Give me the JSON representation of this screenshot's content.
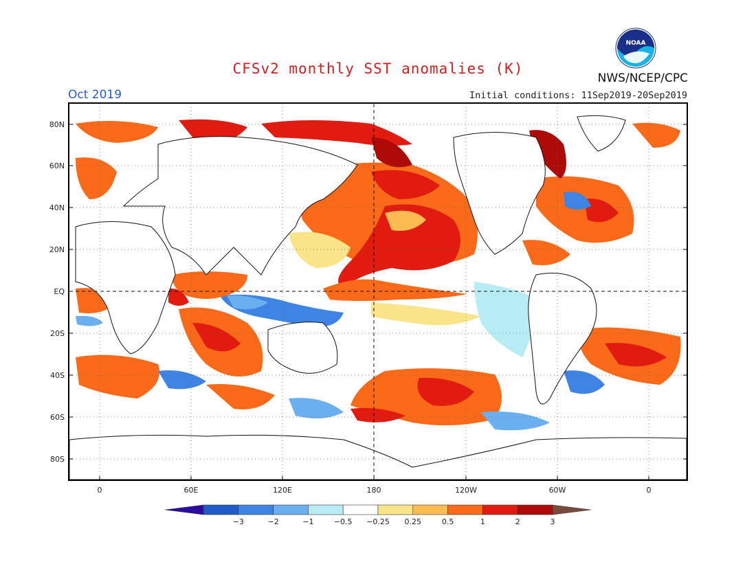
{
  "title": "CFSv2 monthly SST anomalies (K)",
  "month": "Oct 2019",
  "initial_conditions": "Initial conditions: 11Sep2019-20Sep2019",
  "agency": "NWS/NCEP/CPC",
  "logo_text": "NOAA",
  "lat_labels": [
    "80N",
    "60N",
    "40N",
    "20N",
    "EQ",
    "20S",
    "40S",
    "60S",
    "80S"
  ],
  "lon_labels": [
    "0",
    "60E",
    "120E",
    "180",
    "120W",
    "60W",
    "0"
  ],
  "colorbar": {
    "colors": [
      "#2b0c9f",
      "#1f5bc9",
      "#3d84e4",
      "#6ab0f0",
      "#b8ecf4",
      "#ffffff",
      "#fbe58a",
      "#fdbc52",
      "#fa6a18",
      "#e21b10",
      "#ad0a08",
      "#7a4a3a"
    ],
    "labels": [
      "−3",
      "−2",
      "−1",
      "−0.5",
      "−0.25",
      "0.25",
      "0.5",
      "1",
      "2",
      "3"
    ]
  },
  "chart_data": {
    "type": "heatmap",
    "variable": "SST anomalies (K)",
    "levels": [
      -3,
      -2,
      -1,
      -0.5,
      -0.25,
      0.25,
      0.5,
      1,
      2,
      3
    ],
    "lat_ticks": [
      80,
      60,
      40,
      20,
      0,
      -20,
      -40,
      -60,
      -80
    ],
    "lon_ticks": [
      0,
      60,
      120,
      180,
      -120,
      -60,
      0
    ],
    "lat_range": [
      -90,
      90
    ],
    "lon_range": [
      -20,
      380
    ],
    "grid": "dotted"
  }
}
